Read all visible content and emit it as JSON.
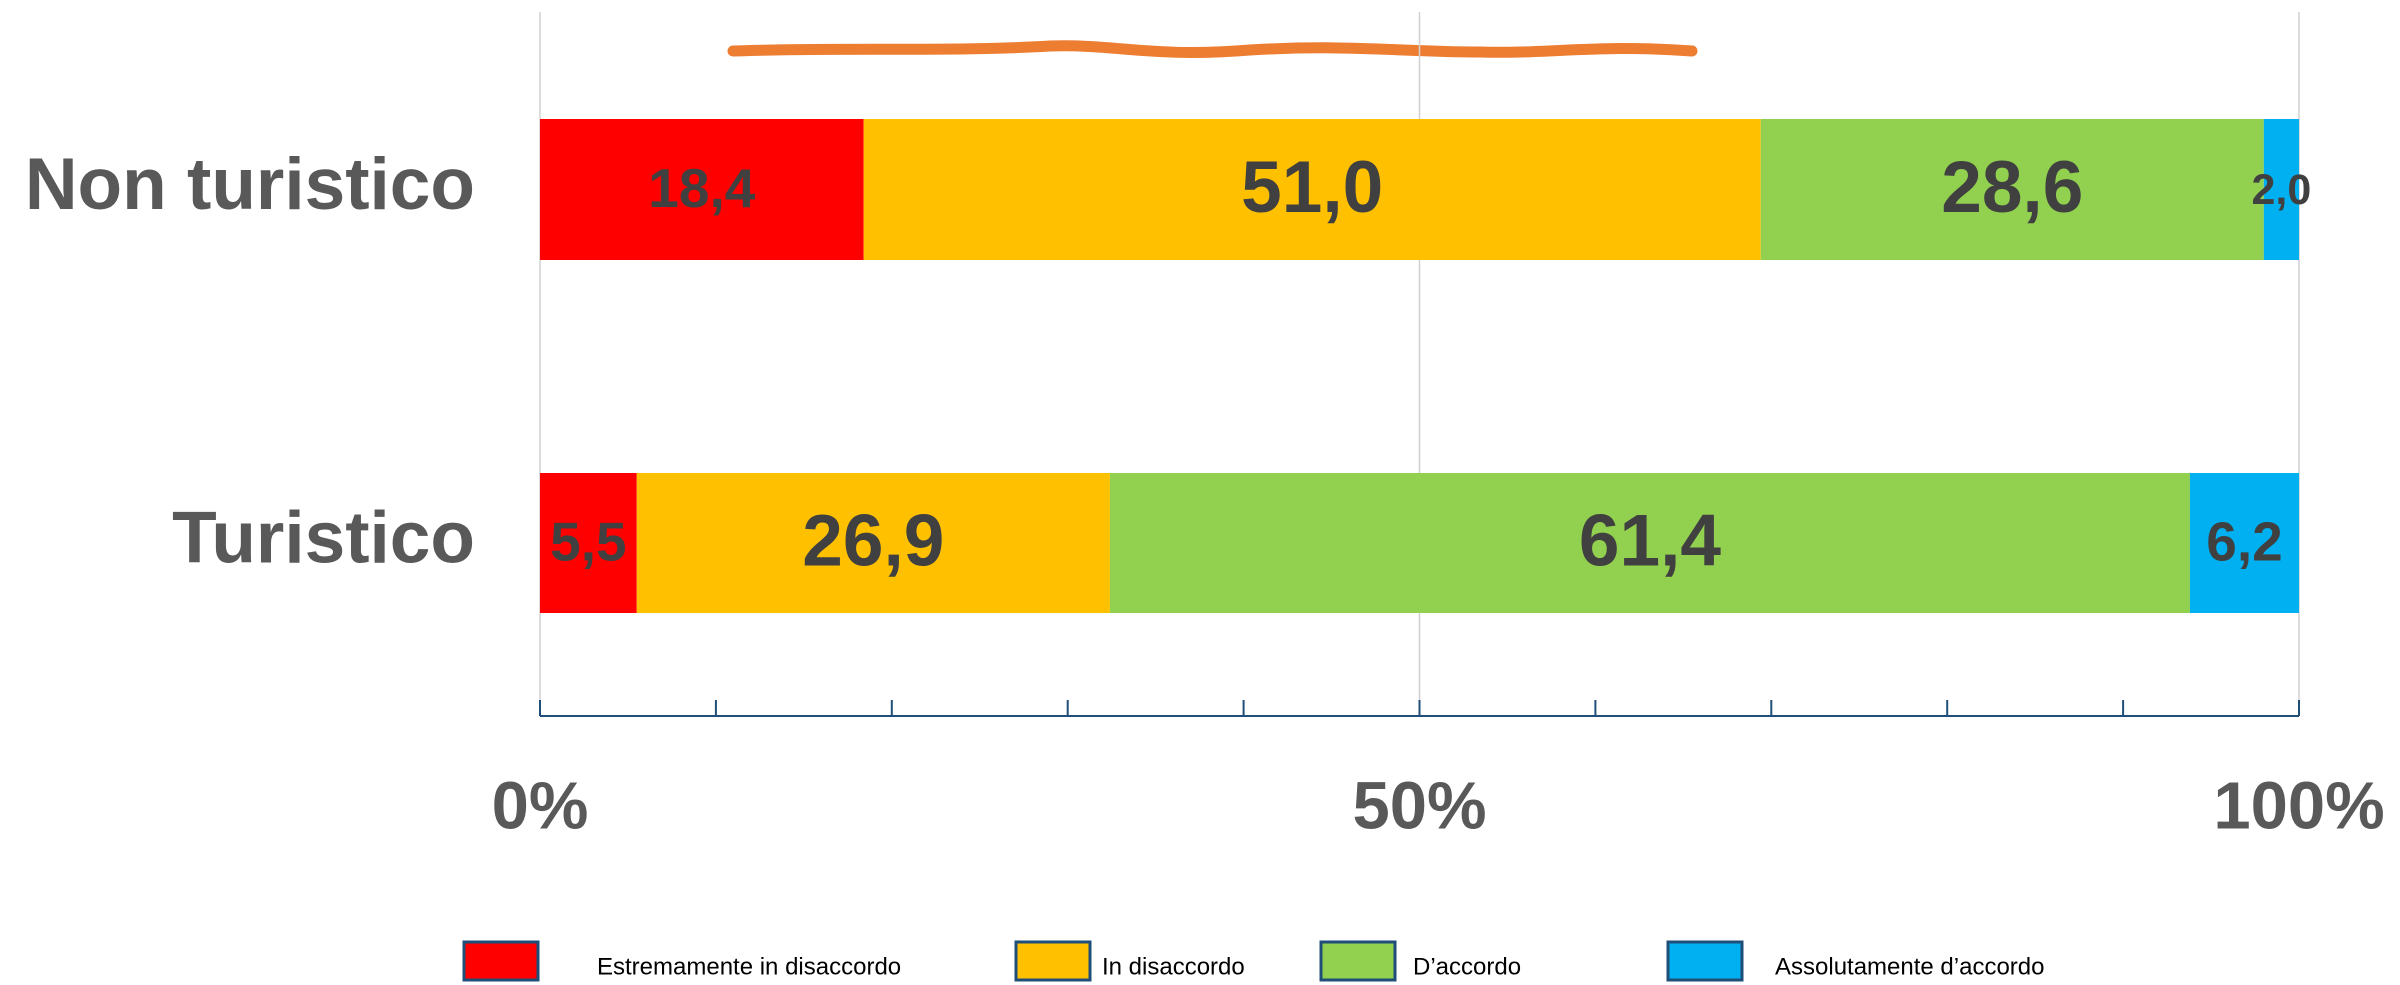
{
  "chart_data": {
    "type": "stacked_barh",
    "categories": [
      "Non turistico",
      "Turistico"
    ],
    "series": [
      {
        "name": "Estremamente in disaccordo",
        "color": "#ff0000",
        "values": [
          18.4,
          5.5
        ],
        "value_labels": [
          "18,4",
          "5,5"
        ]
      },
      {
        "name": "In disaccordo",
        "color": "#ffc000",
        "values": [
          51.0,
          26.9
        ],
        "value_labels": [
          "51,0",
          "26,9"
        ]
      },
      {
        "name": "D’accordo",
        "color": "#92d050",
        "values": [
          28.6,
          61.4
        ],
        "value_labels": [
          "28,6",
          "61,4"
        ]
      },
      {
        "name": "Assolutamente d’accordo",
        "color": "#00b0f0",
        "values": [
          2.0,
          6.2
        ],
        "value_labels": [
          "2,0",
          "6,2"
        ]
      }
    ],
    "xlim": [
      0,
      100
    ],
    "xticks": [
      {
        "value": 0,
        "label": "0%"
      },
      {
        "value": 50,
        "label": "50%"
      },
      {
        "value": 100,
        "label": "100%"
      }
    ],
    "xminorticks": [
      10,
      20,
      30,
      40,
      60,
      70,
      80,
      90
    ],
    "grid": true,
    "legend": "bottom"
  }
}
